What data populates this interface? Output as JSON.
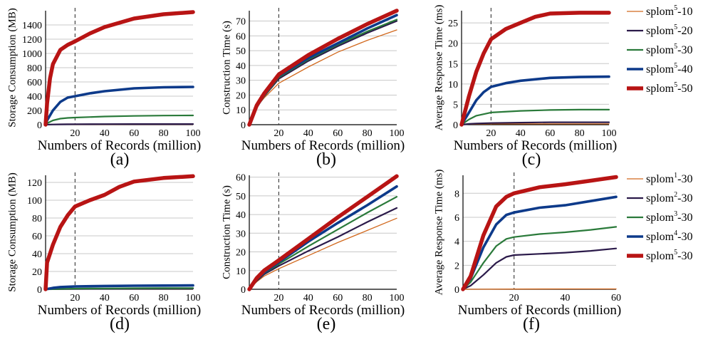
{
  "chart_data": [
    {
      "id": "a",
      "panel_label": "(a)",
      "type": "line",
      "xlabel": "Numbers of Records (million)",
      "ylabel": "Storage Consumption (MB)",
      "xlim": [
        0,
        100
      ],
      "ylim": [
        0,
        1600
      ],
      "xticks": [
        "20",
        "40",
        "60",
        "80",
        "100"
      ],
      "yticks": [
        "0",
        "200",
        "400",
        "600",
        "800",
        "1000",
        "1200",
        "1400"
      ],
      "grid": "horizontal",
      "vline_x": 20,
      "series": [
        {
          "name_idx": 0,
          "x": [
            0,
            1,
            5,
            10,
            15,
            20,
            40,
            60,
            80,
            100
          ],
          "y": [
            0,
            1,
            2,
            2,
            3,
            3,
            3,
            4,
            4,
            4
          ]
        },
        {
          "name_idx": 1,
          "x": [
            0,
            1,
            5,
            10,
            15,
            20,
            40,
            60,
            80,
            100
          ],
          "y": [
            0,
            1,
            3,
            5,
            6,
            7,
            8,
            9,
            9,
            9
          ]
        },
        {
          "name_idx": 2,
          "x": [
            0,
            1,
            5,
            10,
            15,
            20,
            40,
            60,
            80,
            100
          ],
          "y": [
            0,
            20,
            60,
            85,
            95,
            100,
            115,
            123,
            128,
            130
          ]
        },
        {
          "name_idx": 3,
          "x": [
            0,
            1,
            5,
            10,
            15,
            20,
            30,
            40,
            60,
            80,
            100
          ],
          "y": [
            0,
            60,
            200,
            320,
            380,
            400,
            440,
            470,
            510,
            525,
            530
          ]
        },
        {
          "name_idx": 4,
          "x": [
            0,
            1,
            3,
            5,
            10,
            15,
            20,
            30,
            40,
            60,
            80,
            100
          ],
          "y": [
            0,
            300,
            650,
            850,
            1050,
            1120,
            1170,
            1280,
            1370,
            1490,
            1550,
            1580
          ]
        }
      ]
    },
    {
      "id": "b",
      "panel_label": "(b)",
      "type": "line",
      "xlabel": "Numbers of Records (million)",
      "ylabel": "Construction Time (s)",
      "xlim": [
        0,
        100
      ],
      "ylim": [
        0,
        77
      ],
      "xticks": [
        "20",
        "40",
        "60",
        "80",
        "100"
      ],
      "yticks": [
        "0",
        "10",
        "20",
        "30",
        "40",
        "50",
        "60",
        "70"
      ],
      "grid": "horizontal",
      "vline_x": 20,
      "series": [
        {
          "name_idx": 0,
          "x": [
            0,
            5,
            10,
            20,
            40,
            60,
            80,
            100
          ],
          "y": [
            0,
            12,
            18,
            28,
            39,
            49,
            57,
            64
          ]
        },
        {
          "name_idx": 1,
          "x": [
            0,
            5,
            10,
            20,
            40,
            60,
            80,
            100
          ],
          "y": [
            0,
            12,
            19,
            31,
            43,
            53,
            62,
            70
          ]
        },
        {
          "name_idx": 2,
          "x": [
            0,
            5,
            10,
            20,
            40,
            60,
            80,
            100
          ],
          "y": [
            0,
            12,
            19,
            32,
            44,
            54,
            63,
            71
          ]
        },
        {
          "name_idx": 3,
          "x": [
            0,
            5,
            10,
            20,
            40,
            60,
            80,
            100
          ],
          "y": [
            0,
            12,
            20,
            33,
            45,
            55,
            65,
            74
          ]
        },
        {
          "name_idx": 4,
          "x": [
            0,
            5,
            10,
            20,
            40,
            60,
            80,
            100
          ],
          "y": [
            0,
            13,
            21,
            34,
            47,
            58,
            68,
            77
          ]
        }
      ]
    },
    {
      "id": "c",
      "panel_label": "(c)",
      "type": "line",
      "xlabel": "Numbers of Records (million)",
      "ylabel": "Average Response Time (ms)",
      "xlim": [
        0,
        100
      ],
      "ylim": [
        0,
        28
      ],
      "xticks": [
        "20",
        "40",
        "60",
        "80",
        "100"
      ],
      "yticks": [
        "0",
        "5",
        "10",
        "15",
        "20",
        "25"
      ],
      "grid": "horizontal",
      "vline_x": 20,
      "series": [
        {
          "name_idx": 0,
          "x": [
            0,
            5,
            10,
            20,
            40,
            60,
            80,
            100
          ],
          "y": [
            0,
            0.1,
            0.15,
            0.2,
            0.2,
            0.2,
            0.2,
            0.2
          ]
        },
        {
          "name_idx": 1,
          "x": [
            0,
            5,
            10,
            20,
            40,
            60,
            80,
            100
          ],
          "y": [
            0,
            0.2,
            0.3,
            0.4,
            0.5,
            0.6,
            0.6,
            0.6
          ]
        },
        {
          "name_idx": 2,
          "x": [
            0,
            5,
            10,
            20,
            40,
            60,
            80,
            100
          ],
          "y": [
            0,
            1.3,
            2.2,
            3.0,
            3.4,
            3.6,
            3.7,
            3.7
          ]
        },
        {
          "name_idx": 3,
          "x": [
            0,
            5,
            10,
            15,
            20,
            30,
            40,
            60,
            80,
            100
          ],
          "y": [
            0,
            3,
            6,
            8,
            9.3,
            10.2,
            10.8,
            11.5,
            11.7,
            11.8
          ]
        },
        {
          "name_idx": 4,
          "x": [
            0,
            5,
            10,
            15,
            20,
            30,
            40,
            50,
            60,
            80,
            100
          ],
          "y": [
            0,
            7,
            13,
            17.5,
            21,
            23.5,
            25,
            26.5,
            27.3,
            27.5,
            27.5
          ]
        }
      ]
    },
    {
      "id": "d",
      "panel_label": "(d)",
      "type": "line",
      "xlabel": "Numbers of Records (million)",
      "ylabel": "Storage Consumption (MB)",
      "xlim": [
        0,
        100
      ],
      "ylim": [
        0,
        128
      ],
      "xticks": [
        "20",
        "40",
        "60",
        "80",
        "100"
      ],
      "yticks": [
        "0",
        "20",
        "40",
        "60",
        "80",
        "100",
        "120"
      ],
      "grid": "horizontal",
      "vline_x": 20,
      "series": [
        {
          "name_idx": 0,
          "x": [
            0,
            20,
            40,
            60,
            80,
            100
          ],
          "y": [
            0,
            0.2,
            0.3,
            0.3,
            0.4,
            0.4
          ]
        },
        {
          "name_idx": 1,
          "x": [
            0,
            20,
            40,
            60,
            80,
            100
          ],
          "y": [
            0,
            0.4,
            0.5,
            0.6,
            0.7,
            0.8
          ]
        },
        {
          "name_idx": 2,
          "x": [
            0,
            20,
            40,
            60,
            80,
            100
          ],
          "y": [
            0,
            0.8,
            1.0,
            1.2,
            1.3,
            1.4
          ]
        },
        {
          "name_idx": 3,
          "x": [
            0,
            5,
            10,
            20,
            40,
            60,
            80,
            100
          ],
          "y": [
            0,
            1.5,
            2.5,
            3.2,
            3.7,
            4.0,
            4.2,
            4.3
          ]
        },
        {
          "name_idx": 4,
          "x": [
            0,
            1,
            3,
            5,
            10,
            15,
            20,
            30,
            40,
            50,
            60,
            80,
            100
          ],
          "y": [
            0,
            30,
            40,
            50,
            70,
            83,
            93,
            100,
            106,
            115,
            121,
            125,
            127
          ]
        }
      ]
    },
    {
      "id": "e",
      "panel_label": "(e)",
      "type": "line",
      "xlabel": "Numbers of Records (million)",
      "ylabel": "Construction Time (s)",
      "xlim": [
        0,
        100
      ],
      "ylim": [
        0,
        61
      ],
      "xticks": [
        "20",
        "40",
        "60",
        "80",
        "100"
      ],
      "yticks": [
        "0",
        "10",
        "20",
        "30",
        "40",
        "50",
        "60"
      ],
      "grid": "horizontal",
      "vline_x": 20,
      "series": [
        {
          "name_idx": 0,
          "x": [
            0,
            5,
            10,
            20,
            40,
            60,
            80,
            100
          ],
          "y": [
            0,
            4,
            7,
            11,
            18,
            25,
            31.5,
            38
          ]
        },
        {
          "name_idx": 1,
          "x": [
            0,
            5,
            10,
            20,
            40,
            60,
            80,
            100
          ],
          "y": [
            0,
            4.5,
            8,
            12.5,
            20.5,
            28,
            36,
            43.5
          ]
        },
        {
          "name_idx": 2,
          "x": [
            0,
            5,
            10,
            20,
            40,
            60,
            80,
            100
          ],
          "y": [
            0,
            5,
            8.5,
            13.5,
            23,
            32,
            41,
            49.5
          ]
        },
        {
          "name_idx": 3,
          "x": [
            0,
            5,
            10,
            20,
            40,
            60,
            80,
            100
          ],
          "y": [
            0,
            5.5,
            9,
            14.5,
            25.5,
            35.5,
            45,
            55
          ]
        },
        {
          "name_idx": 4,
          "x": [
            0,
            5,
            10,
            20,
            40,
            60,
            80,
            100
          ],
          "y": [
            0,
            6,
            10,
            15.5,
            27,
            38.5,
            49.5,
            60.5
          ]
        }
      ]
    },
    {
      "id": "f",
      "panel_label": "(f)",
      "type": "line",
      "xlabel": "Numbers of Records (million)",
      "ylabel": "Average Response Time (ms)",
      "xlim": [
        0,
        60
      ],
      "ylim": [
        0,
        9.5
      ],
      "xticks": [
        "20",
        "40",
        "60"
      ],
      "yticks": [
        "0",
        "2",
        "4",
        "6",
        "8"
      ],
      "grid": "horizontal",
      "vline_x": 20,
      "series": [
        {
          "name_idx": 0,
          "x": [
            0,
            20,
            40,
            60
          ],
          "y": [
            0,
            0.02,
            0.03,
            0.03
          ]
        },
        {
          "name_idx": 1,
          "x": [
            0,
            3,
            8,
            13,
            17,
            20,
            30,
            40,
            50,
            60
          ],
          "y": [
            0,
            0.3,
            1.2,
            2.2,
            2.7,
            2.85,
            2.95,
            3.05,
            3.2,
            3.4
          ]
        },
        {
          "name_idx": 2,
          "x": [
            0,
            3,
            8,
            13,
            17,
            20,
            30,
            40,
            50,
            60
          ],
          "y": [
            0,
            0.6,
            2.2,
            3.6,
            4.2,
            4.35,
            4.6,
            4.75,
            4.95,
            5.2
          ]
        },
        {
          "name_idx": 3,
          "x": [
            0,
            3,
            8,
            13,
            17,
            20,
            30,
            40,
            50,
            60
          ],
          "y": [
            0,
            0.9,
            3.5,
            5.4,
            6.2,
            6.4,
            6.8,
            7.0,
            7.35,
            7.7
          ]
        },
        {
          "name_idx": 4,
          "x": [
            0,
            3,
            8,
            13,
            17,
            20,
            30,
            40,
            50,
            60
          ],
          "y": [
            0,
            1.1,
            4.5,
            6.9,
            7.7,
            8.0,
            8.5,
            8.75,
            9.05,
            9.35
          ]
        }
      ]
    }
  ],
  "legends": {
    "top": [
      {
        "base": "splom",
        "sup": "5",
        "suffix": "-10"
      },
      {
        "base": "splom",
        "sup": "5",
        "suffix": "-20"
      },
      {
        "base": "splom",
        "sup": "5",
        "suffix": "-30"
      },
      {
        "base": "splom",
        "sup": "5",
        "suffix": "-40"
      },
      {
        "base": "splom",
        "sup": "5",
        "suffix": "-50"
      }
    ],
    "bottom": [
      {
        "base": "splom",
        "sup": "1",
        "suffix": "-30"
      },
      {
        "base": "splom",
        "sup": "2",
        "suffix": "-30"
      },
      {
        "base": "splom",
        "sup": "3",
        "suffix": "-30"
      },
      {
        "base": "splom",
        "sup": "4",
        "suffix": "-30"
      },
      {
        "base": "splom",
        "sup": "5",
        "suffix": "-30"
      }
    ]
  },
  "series_styles": [
    {
      "color": "#d2691e",
      "width": "thin"
    },
    {
      "color": "#2b1a4a",
      "width": "medium"
    },
    {
      "color": "#2a7a3a",
      "width": "medium"
    },
    {
      "color": "#0d3a8a",
      "width": "thick"
    },
    {
      "color": "#b81414",
      "width": "heavy"
    }
  ]
}
